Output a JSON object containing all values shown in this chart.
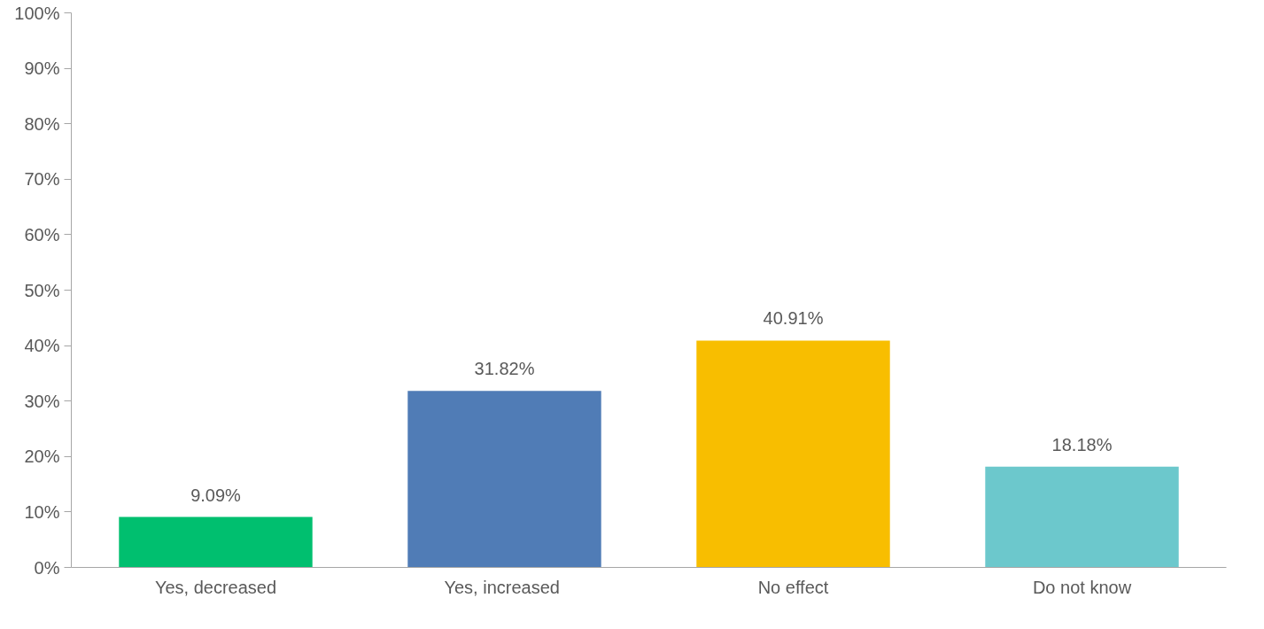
{
  "chart_data": {
    "type": "bar",
    "categories": [
      "Yes, decreased",
      "Yes,  increased",
      "No effect",
      "Do not know"
    ],
    "values": [
      9.09,
      31.82,
      40.91,
      18.18
    ],
    "colors": [
      "#00bf6f",
      "#507cb6",
      "#f8be00",
      "#6cc8cc"
    ],
    "value_labels": [
      "9.09%",
      "31.82%",
      "40.91%",
      "18.18%"
    ],
    "ylim": [
      0,
      100
    ],
    "yticks": [
      {
        "value": 0,
        "label": "0%"
      },
      {
        "value": 10,
        "label": "10%"
      },
      {
        "value": 20,
        "label": "20%"
      },
      {
        "value": 30,
        "label": "30%"
      },
      {
        "value": 40,
        "label": "40%"
      },
      {
        "value": 50,
        "label": "50%"
      },
      {
        "value": 60,
        "label": "60%"
      },
      {
        "value": 70,
        "label": "70%"
      },
      {
        "value": 80,
        "label": "80%"
      },
      {
        "value": 90,
        "label": "90%"
      },
      {
        "value": 100,
        "label": "100%"
      }
    ],
    "grid": false
  }
}
